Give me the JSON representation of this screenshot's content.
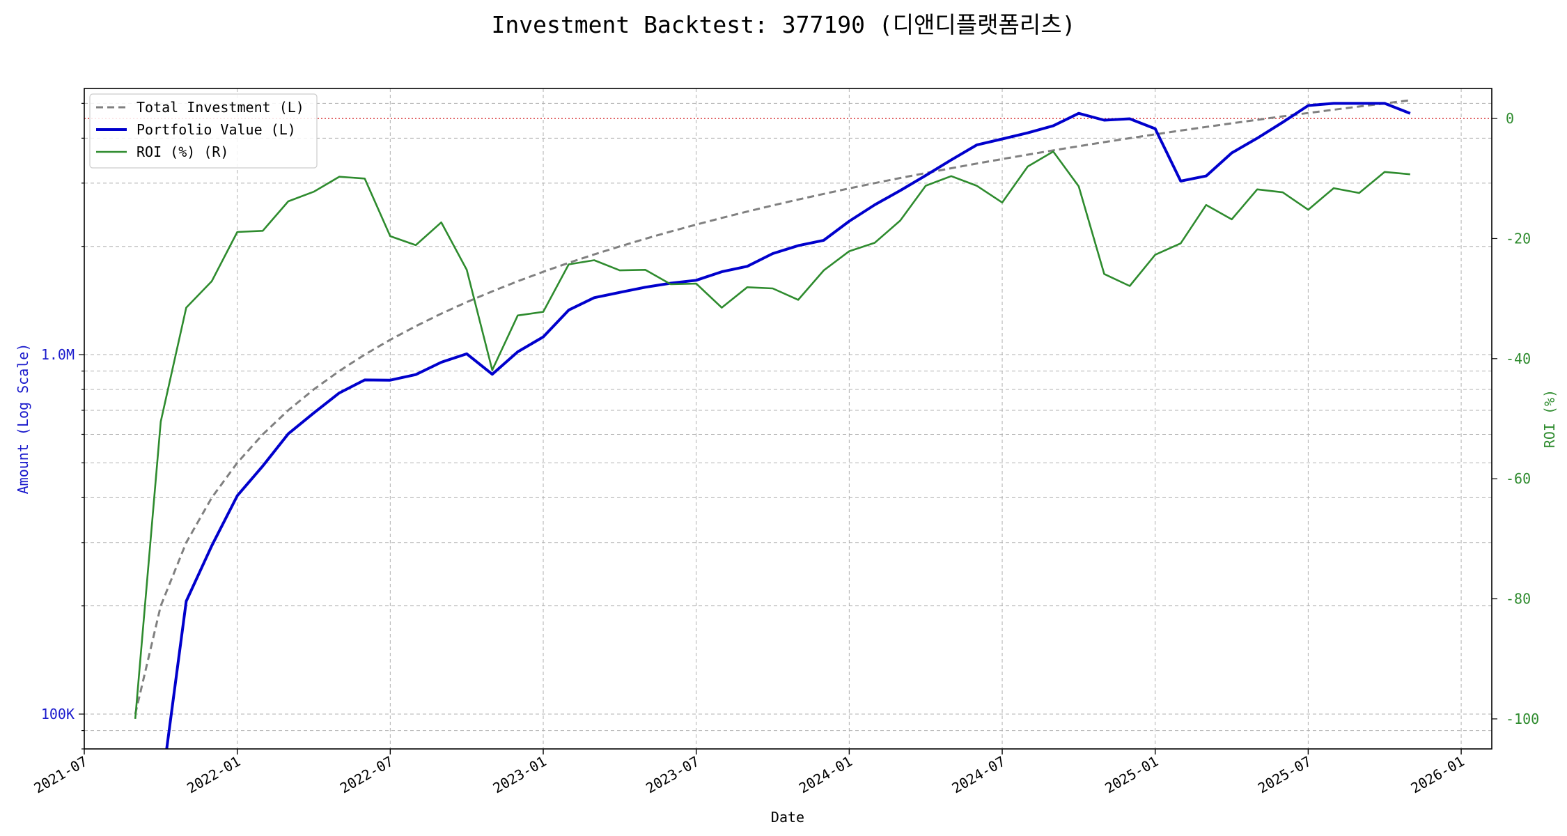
{
  "chart_data": {
    "type": "line",
    "title": "Investment Backtest: 377190 (디앤디플랫폼리츠)",
    "xlabel": "Date",
    "ylabel_left": "Amount (Log Scale)",
    "ylabel_right": "ROI (%)",
    "left_scale": "log",
    "x_ticks": [
      "2021-07",
      "2022-01",
      "2022-07",
      "2023-01",
      "2023-07",
      "2024-01",
      "2024-07",
      "2025-01",
      "2025-07",
      "2026-01"
    ],
    "left_ticks": [
      {
        "value": 100000,
        "label": "100K"
      },
      {
        "value": 1000000,
        "label": "1.0M"
      }
    ],
    "right_ticks": [
      0,
      -20,
      -40,
      -60,
      -80,
      -100
    ],
    "left_ylim": [
      80000,
      5500000
    ],
    "right_ylim": [
      -105,
      5
    ],
    "grid": true,
    "legend_position": "top-left",
    "zero_line": {
      "value": 0,
      "color": "#d62728",
      "style": "dotted"
    },
    "colors": {
      "total_investment": "#808080",
      "portfolio_value": "#0000cc",
      "roi": "#2e8b2e",
      "left_axis": "#1a1acc",
      "right_axis": "#2e8b2e"
    },
    "dates": [
      "2021-09",
      "2021-10",
      "2021-11",
      "2021-12",
      "2022-01",
      "2022-02",
      "2022-03",
      "2022-04",
      "2022-05",
      "2022-06",
      "2022-07",
      "2022-08",
      "2022-09",
      "2022-10",
      "2022-11",
      "2022-12",
      "2023-01",
      "2023-02",
      "2023-03",
      "2023-04",
      "2023-05",
      "2023-06",
      "2023-07",
      "2023-08",
      "2023-09",
      "2023-10",
      "2023-11",
      "2023-12",
      "2024-01",
      "2024-02",
      "2024-03",
      "2024-04",
      "2024-05",
      "2024-06",
      "2024-07",
      "2024-08",
      "2024-09",
      "2024-10",
      "2024-11",
      "2024-12",
      "2025-01",
      "2025-02",
      "2025-03",
      "2025-04",
      "2025-05",
      "2025-06",
      "2025-07",
      "2025-08",
      "2025-09",
      "2025-10",
      "2025-11"
    ],
    "series": [
      {
        "key": "total_investment",
        "name": "Total Investment (L)",
        "axis": "left",
        "style": "dashed",
        "values": [
          100000,
          200000,
          300000,
          400000,
          500000,
          600000,
          700000,
          800000,
          900000,
          1000000,
          1100000,
          1200000,
          1300000,
          1400000,
          1500000,
          1600000,
          1700000,
          1800000,
          1900000,
          2000000,
          2100000,
          2200000,
          2300000,
          2400000,
          2500000,
          2600000,
          2700000,
          2800000,
          2900000,
          3000000,
          3100000,
          3200000,
          3300000,
          3400000,
          3500000,
          3600000,
          3700000,
          3800000,
          3900000,
          4000000,
          4100000,
          4200000,
          4300000,
          4400000,
          4500000,
          4600000,
          4700000,
          4800000,
          4900000,
          5000000,
          5100000
        ]
      },
      {
        "key": "portfolio_value",
        "name": "Portfolio Value (L)",
        "axis": "left",
        "style": "solid",
        "values": [
          null,
          60000,
          206000,
          294000,
          405000,
          490000,
          602000,
          688000,
          782000,
          850000,
          849000,
          880000,
          952000,
          1005000,
          882000,
          1018000,
          1120000,
          1330000,
          1440000,
          1490000,
          1540000,
          1580000,
          1610000,
          1700000,
          1760000,
          1910000,
          2010000,
          2080000,
          2350000,
          2610000,
          2860000,
          3150000,
          3480000,
          3830000,
          3980000,
          4140000,
          4330000,
          4690000,
          4490000,
          4530000,
          4250000,
          3040000,
          3140000,
          3640000,
          4000000,
          4430000,
          4930000,
          5000000,
          5000000,
          5000000,
          4690000
        ]
      },
      {
        "key": "roi",
        "name": "ROI (%) (R)",
        "axis": "right",
        "style": "solid",
        "values": [
          -100,
          -50.5,
          -31.5,
          -27.1,
          -18.9,
          -18.7,
          -13.8,
          -12.2,
          -9.7,
          -10,
          -19.6,
          -21.1,
          -17.3,
          -25.2,
          -41.9,
          -32.8,
          -32.2,
          -24.3,
          -23.6,
          -25.3,
          -25.2,
          -27.6,
          -27.5,
          -31.5,
          -28.1,
          -28.3,
          -30.2,
          -25.3,
          -22.1,
          -20.7,
          -17,
          -11.2,
          -9.6,
          -11.2,
          -14,
          -8,
          -5.5,
          -11.3,
          -25.9,
          -27.9,
          -22.7,
          -20.8,
          -14.4,
          -16.8,
          -11.8,
          -12.3,
          -15.2,
          -11.6,
          -12.4,
          -8.9,
          -9.3
        ]
      }
    ]
  }
}
